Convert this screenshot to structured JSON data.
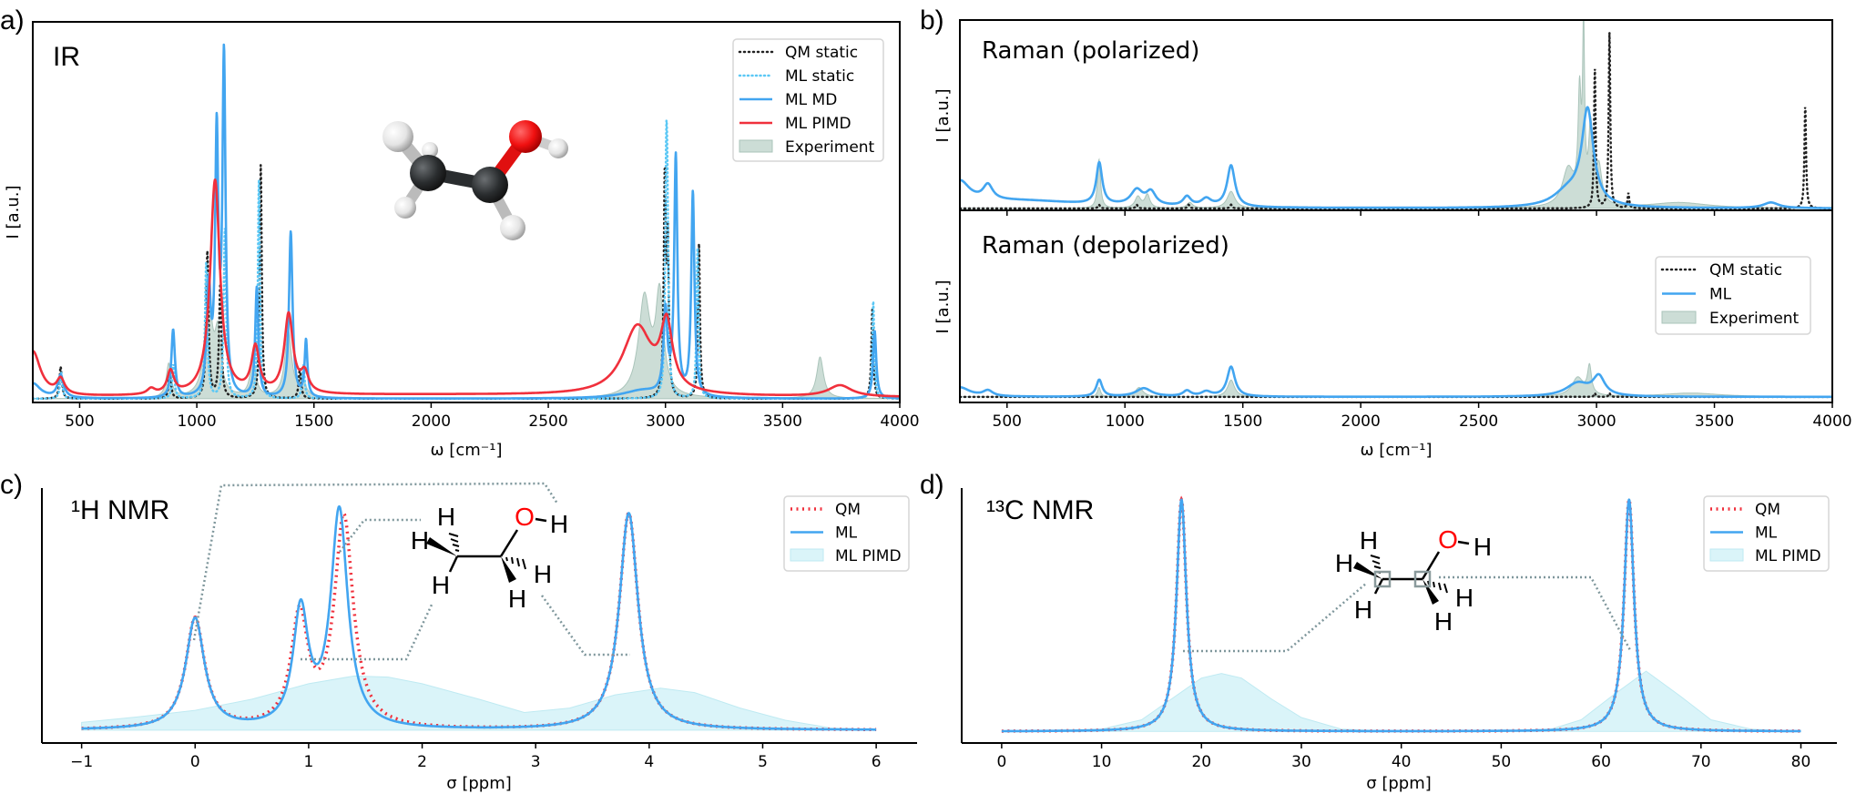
{
  "panel_labels": {
    "a": "a)",
    "b": "b)",
    "c": "c)",
    "d": "d)"
  },
  "molecule_labels": {
    "hydrogen": "H",
    "oxygen": "O"
  },
  "colors": {
    "qm_static": "#222222",
    "ml_static": "#5bc8f5",
    "ml": "#42a5f0",
    "ml_pimd": "#f0303c",
    "experiment": "#c3d7cf",
    "nmr_qm": "#f0303c",
    "nmr_pimd": "#d6f3f8",
    "connector": "#7f979c",
    "oxygen": "#ff0000"
  },
  "chart_data": [
    {
      "panel": "a",
      "type": "line",
      "title": "IR",
      "xlabel": "ω [cm⁻¹]",
      "ylabel": "I [a.u.]",
      "xlim": [
        300,
        4000
      ],
      "ylim": [
        -0.01,
        1.0
      ],
      "x_range": [
        300,
        4000
      ],
      "xticks": [
        500,
        1000,
        1500,
        2000,
        2500,
        3000,
        3500,
        4000
      ],
      "xtick_labels": [
        "500",
        "1000",
        "1500",
        "2000",
        "2500",
        "3000",
        "3500",
        "4000"
      ],
      "grid": false,
      "legend": "top-right",
      "series": [
        {
          "name": "Experiment",
          "style": "fill",
          "color": "#c3d7cf",
          "peaks": [
            [
              880,
              0.09,
              25
            ],
            [
              1050,
              0.26,
              40
            ],
            [
              1090,
              0.15,
              30
            ],
            [
              1240,
              0.1,
              30
            ],
            [
              1390,
              0.18,
              35
            ],
            [
              1450,
              0.05,
              30
            ],
            [
              2910,
              0.26,
              60
            ],
            [
              2975,
              0.26,
              40
            ],
            [
              3660,
              0.11,
              35
            ]
          ]
        },
        {
          "name": "QM static",
          "style": "dotted",
          "color": "#222222",
          "peaks": [
            [
              419,
              0.085,
              12
            ],
            [
              885,
              0.07,
              12
            ],
            [
              1045,
              0.39,
              12
            ],
            [
              1100,
              0.3,
              12
            ],
            [
              1273,
              0.62,
              10
            ],
            [
              1440,
              0.08,
              12
            ],
            [
              2997,
              0.57,
              10
            ],
            [
              3010,
              0.4,
              10
            ],
            [
              3143,
              0.41,
              10
            ],
            [
              3883,
              0.24,
              10
            ]
          ]
        },
        {
          "name": "ML static",
          "style": "dotted-light",
          "color": "#5bc8f5",
          "peaks": [
            [
              421,
              0.07,
              12
            ],
            [
              900,
              0.09,
              12
            ],
            [
              1040,
              0.36,
              12
            ],
            [
              1120,
              0.45,
              12
            ],
            [
              1265,
              0.58,
              10
            ],
            [
              1455,
              0.09,
              12
            ],
            [
              3003,
              0.5,
              10
            ],
            [
              3008,
              0.42,
              10
            ],
            [
              3137,
              0.4,
              10
            ],
            [
              3887,
              0.26,
              10
            ]
          ]
        },
        {
          "name": "ML MD",
          "style": "solid",
          "color": "#42a5f0",
          "peaks": [
            [
              300,
              0.04,
              80
            ],
            [
              419,
              0.06,
              30
            ],
            [
              899,
              0.18,
              18
            ],
            [
              1051,
              0.28,
              20
            ],
            [
              1085,
              0.68,
              16
            ],
            [
              1116,
              0.89,
              16
            ],
            [
              1256,
              0.29,
              16
            ],
            [
              1401,
              0.44,
              18
            ],
            [
              1466,
              0.15,
              14
            ],
            [
              2900,
              0.02,
              200
            ],
            [
              3000,
              0.22,
              20
            ],
            [
              3044,
              0.63,
              16
            ],
            [
              3117,
              0.54,
              16
            ],
            [
              3893,
              0.18,
              16
            ]
          ]
        },
        {
          "name": "ML PIMD",
          "style": "solid",
          "color": "#f0303c",
          "peaks": [
            [
              300,
              0.12,
              80
            ],
            [
              419,
              0.04,
              40
            ],
            [
              805,
              0.015,
              40
            ],
            [
              888,
              0.06,
              35
            ],
            [
              1078,
              0.57,
              50
            ],
            [
              1250,
              0.12,
              40
            ],
            [
              1392,
              0.21,
              45
            ],
            [
              1460,
              0.05,
              40
            ],
            [
              2880,
              0.18,
              150
            ],
            [
              3005,
              0.17,
              60
            ],
            [
              3745,
              0.03,
              120
            ],
            [
              2000,
              0.01,
              3000
            ]
          ]
        }
      ]
    },
    {
      "panel": "b-top",
      "type": "line",
      "title": "Raman (polarized)",
      "xlabel": "",
      "ylabel": "I [a.u.]",
      "xlim": [
        300,
        4000
      ],
      "ylim": [
        -0.01,
        1.0
      ],
      "x_range": [
        300,
        4000
      ],
      "xticks": [
        500,
        1000,
        1500,
        2000,
        2500,
        3000,
        3500,
        4000
      ],
      "xtick_labels": [],
      "grid": false,
      "legend": "none",
      "series": [
        {
          "name": "Experiment",
          "style": "fill",
          "color": "#c3d7cf",
          "peaks": [
            [
              890,
              0.26,
              15
            ],
            [
              1055,
              0.06,
              30
            ],
            [
              1095,
              0.07,
              25
            ],
            [
              1275,
              0.03,
              30
            ],
            [
              1450,
              0.09,
              40
            ],
            [
              2880,
              0.2,
              60
            ],
            [
              2928,
              0.55,
              15
            ],
            [
              2945,
              0.9,
              10
            ],
            [
              2975,
              0.4,
              20
            ],
            [
              3010,
              0.2,
              30
            ],
            [
              3350,
              0.03,
              300
            ]
          ]
        },
        {
          "name": "QM static",
          "style": "dotted",
          "color": "#222222",
          "peaks": [
            [
              890,
              0.02,
              10
            ],
            [
              1050,
              0.02,
              10
            ],
            [
              1270,
              0.02,
              10
            ],
            [
              1450,
              0.02,
              10
            ],
            [
              2993,
              0.74,
              8
            ],
            [
              3055,
              0.93,
              8
            ],
            [
              3135,
              0.08,
              8
            ],
            [
              3885,
              0.55,
              8
            ]
          ]
        },
        {
          "name": "ML",
          "style": "solid",
          "color": "#42a5f0",
          "peaks": [
            [
              300,
              0.12,
              100
            ],
            [
              419,
              0.08,
              50
            ],
            [
              550,
              0.04,
              700
            ],
            [
              891,
              0.22,
              30
            ],
            [
              1050,
              0.08,
              60
            ],
            [
              1110,
              0.07,
              50
            ],
            [
              1263,
              0.05,
              40
            ],
            [
              1345,
              0.04,
              50
            ],
            [
              1450,
              0.22,
              40
            ],
            [
              2880,
              0.08,
              150
            ],
            [
              2962,
              0.5,
              60
            ],
            [
              3740,
              0.03,
              80
            ]
          ]
        }
      ]
    },
    {
      "panel": "b-bottom",
      "type": "line",
      "title": "Raman (depolarized)",
      "xlabel": "ω [cm⁻¹]",
      "ylabel": "I [a.u.]",
      "xlim": [
        300,
        4000
      ],
      "ylim": [
        -0.03,
        1.0
      ],
      "x_range": [
        300,
        4000
      ],
      "xticks": [
        500,
        1000,
        1500,
        2000,
        2500,
        3000,
        3500,
        4000
      ],
      "xtick_labels": [
        "500",
        "1000",
        "1500",
        "2000",
        "2500",
        "3000",
        "3500",
        "4000"
      ],
      "grid": false,
      "legend": "center-right",
      "series": [
        {
          "name": "Experiment",
          "style": "fill",
          "color": "#c3d7cf",
          "peaks": [
            [
              890,
              0.05,
              15
            ],
            [
              1060,
              0.05,
              40
            ],
            [
              1450,
              0.09,
              35
            ],
            [
              2920,
              0.1,
              60
            ],
            [
              2970,
              0.15,
              20
            ],
            [
              3400,
              0.02,
              300
            ]
          ]
        },
        {
          "name": "QM static",
          "style": "dotted",
          "color": "#222222",
          "peaks": [
            [
              2993,
              0.02,
              8
            ],
            [
              3055,
              0.02,
              8
            ]
          ]
        },
        {
          "name": "ML",
          "style": "solid",
          "color": "#42a5f0",
          "peaks": [
            [
              300,
              0.05,
              100
            ],
            [
              419,
              0.03,
              50
            ],
            [
              891,
              0.09,
              30
            ],
            [
              1080,
              0.045,
              80
            ],
            [
              1263,
              0.03,
              40
            ],
            [
              1345,
              0.025,
              50
            ],
            [
              1450,
              0.16,
              40
            ],
            [
              2920,
              0.07,
              120
            ],
            [
              3010,
              0.1,
              60
            ]
          ]
        }
      ]
    },
    {
      "panel": "c",
      "type": "line",
      "title": "¹H NMR",
      "xlabel": "σ [ppm]",
      "ylabel": "",
      "xlim": [
        -1.35,
        6.36
      ],
      "ylim": [
        -0.058,
        1.095
      ],
      "x_range": [
        -1,
        6
      ],
      "xticks": [
        -1,
        0,
        1,
        2,
        3,
        4,
        5,
        6
      ],
      "xtick_labels": [
        "−1",
        "0",
        "1",
        "2",
        "3",
        "4",
        "5",
        "6"
      ],
      "grid": false,
      "legend": "top-right",
      "series": [
        {
          "name": "ML PIMD",
          "style": "fill-light",
          "color": "#d6f3f8",
          "points": [
            [
              -1,
              0.035
            ],
            [
              -0.5,
              0.06
            ],
            [
              0,
              0.09
            ],
            [
              0.5,
              0.14
            ],
            [
              1,
              0.21
            ],
            [
              1.4,
              0.245
            ],
            [
              1.7,
              0.24
            ],
            [
              2,
              0.21
            ],
            [
              2.5,
              0.14
            ],
            [
              2.9,
              0.08
            ],
            [
              3.3,
              0.1
            ],
            [
              3.7,
              0.16
            ],
            [
              4.1,
              0.19
            ],
            [
              4.4,
              0.17
            ],
            [
              4.8,
              0.1
            ],
            [
              5.2,
              0.045
            ],
            [
              5.6,
              0.01
            ],
            [
              6,
              0
            ]
          ]
        },
        {
          "name": "QM",
          "style": "dotted-red",
          "color": "#f0303c",
          "peaks": [
            [
              0,
              0.5,
              0.2
            ],
            [
              0.92,
              0.5,
              0.18
            ],
            [
              1.31,
              0.95,
              0.2
            ],
            [
              3.82,
              0.98,
              0.2
            ]
          ]
        },
        {
          "name": "ML",
          "style": "solid",
          "color": "#42a5f0",
          "peaks": [
            [
              0,
              0.5,
              0.2
            ],
            [
              0.93,
              0.52,
              0.16
            ],
            [
              1.27,
              0.98,
              0.18
            ],
            [
              3.82,
              0.98,
              0.2
            ]
          ]
        }
      ]
    },
    {
      "panel": "d",
      "type": "line",
      "title": "¹³C NMR",
      "xlabel": "σ [ppm]",
      "ylabel": "",
      "xlim": [
        -4,
        83.6
      ],
      "ylim": [
        -0.05,
        1.05
      ],
      "x_range": [
        0,
        80
      ],
      "xticks": [
        0,
        10,
        20,
        30,
        40,
        50,
        60,
        70,
        80
      ],
      "xtick_labels": [
        "0",
        "10",
        "20",
        "30",
        "40",
        "50",
        "60",
        "70",
        "80"
      ],
      "grid": false,
      "legend": "top-right",
      "series": [
        {
          "name": "ML PIMD",
          "style": "fill-light",
          "color": "#d6f3f8",
          "points": [
            [
              0,
              0
            ],
            [
              10,
              0.01
            ],
            [
              14,
              0.05
            ],
            [
              17,
              0.14
            ],
            [
              20,
              0.23
            ],
            [
              22,
              0.25
            ],
            [
              24,
              0.23
            ],
            [
              27,
              0.14
            ],
            [
              30,
              0.06
            ],
            [
              34,
              0.01
            ],
            [
              40,
              0
            ],
            [
              50,
              0
            ],
            [
              55,
              0.01
            ],
            [
              58,
              0.05
            ],
            [
              61,
              0.15
            ],
            [
              64.5,
              0.26
            ],
            [
              68,
              0.15
            ],
            [
              71,
              0.05
            ],
            [
              75,
              0.01
            ],
            [
              80,
              0
            ]
          ]
        },
        {
          "name": "QM",
          "style": "dotted-red",
          "color": "#f0303c",
          "peaks": [
            [
              18,
              1.0,
              1.2
            ],
            [
              62.8,
              1.0,
              1.2
            ]
          ]
        },
        {
          "name": "ML",
          "style": "solid",
          "color": "#42a5f0",
          "peaks": [
            [
              18,
              1.0,
              1.2
            ],
            [
              62.8,
              1.0,
              1.2
            ]
          ]
        }
      ]
    }
  ]
}
